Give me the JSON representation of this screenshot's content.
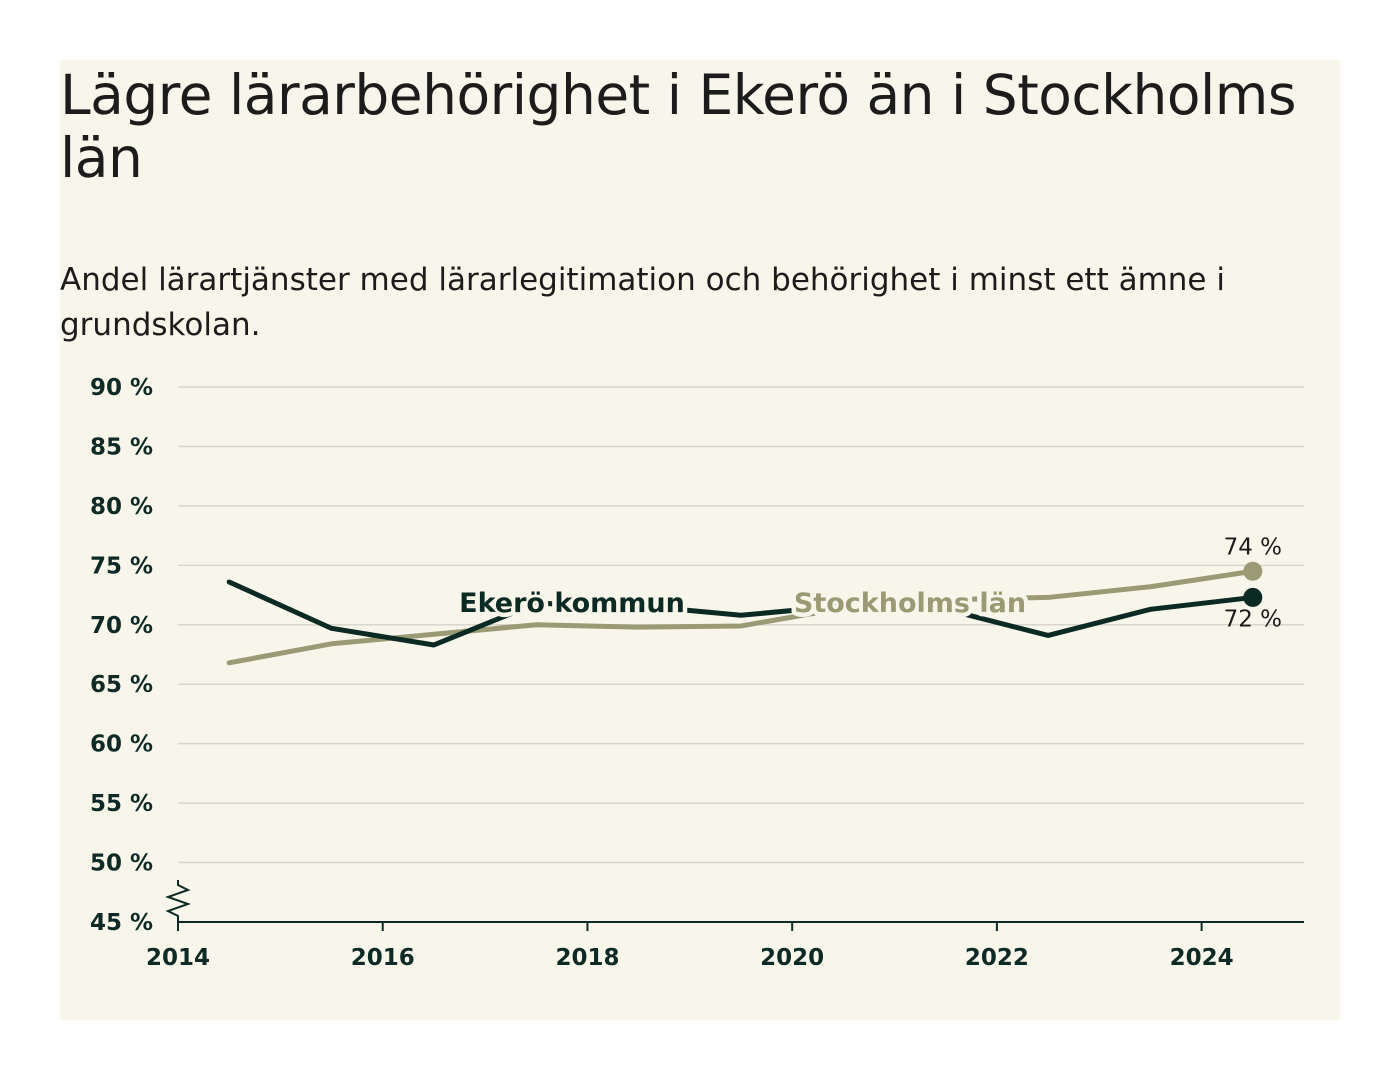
{
  "header": {
    "title": "Lägre lärarbehörighet i Ekerö än i Stockholms län",
    "subtitle": "Andel lärartjänster med lärarlegitimation och behörighet i minst ett ämne i grundskolan."
  },
  "chart_data": {
    "type": "line",
    "ylim": [
      45,
      90
    ],
    "yticks": [
      45,
      50,
      55,
      60,
      65,
      70,
      75,
      80,
      85,
      90
    ],
    "ytick_labels": [
      "45 %",
      "50 %",
      "55 %",
      "60 %",
      "65 %",
      "70 %",
      "75 %",
      "80 %",
      "85 %",
      "90 %"
    ],
    "xlim": [
      2014,
      2025
    ],
    "xticks": [
      2014,
      2016,
      2018,
      2020,
      2022,
      2024
    ],
    "xtick_labels": [
      "2014",
      "2016",
      "2018",
      "2020",
      "2022",
      "2024"
    ],
    "grid": true,
    "axis_break": true,
    "x": [
      2014.5,
      2015.5,
      2016.5,
      2017.5,
      2018.5,
      2019.5,
      2020.5,
      2021.5,
      2022.5,
      2023.5,
      2024.5
    ],
    "series": [
      {
        "name": "Ekerö kommun",
        "color": "#0b2a24",
        "values": [
          73.6,
          69.7,
          68.3,
          71.8,
          71.6,
          70.8,
          71.6,
          71.3,
          69.1,
          71.3,
          72.3
        ],
        "end_label": "72 %"
      },
      {
        "name": "Stockholms län",
        "color": "#9a9a74",
        "values": [
          66.8,
          68.4,
          69.2,
          70.0,
          69.8,
          69.9,
          71.4,
          72.1,
          72.3,
          73.2,
          74.5
        ],
        "end_label": "74 %"
      }
    ]
  }
}
